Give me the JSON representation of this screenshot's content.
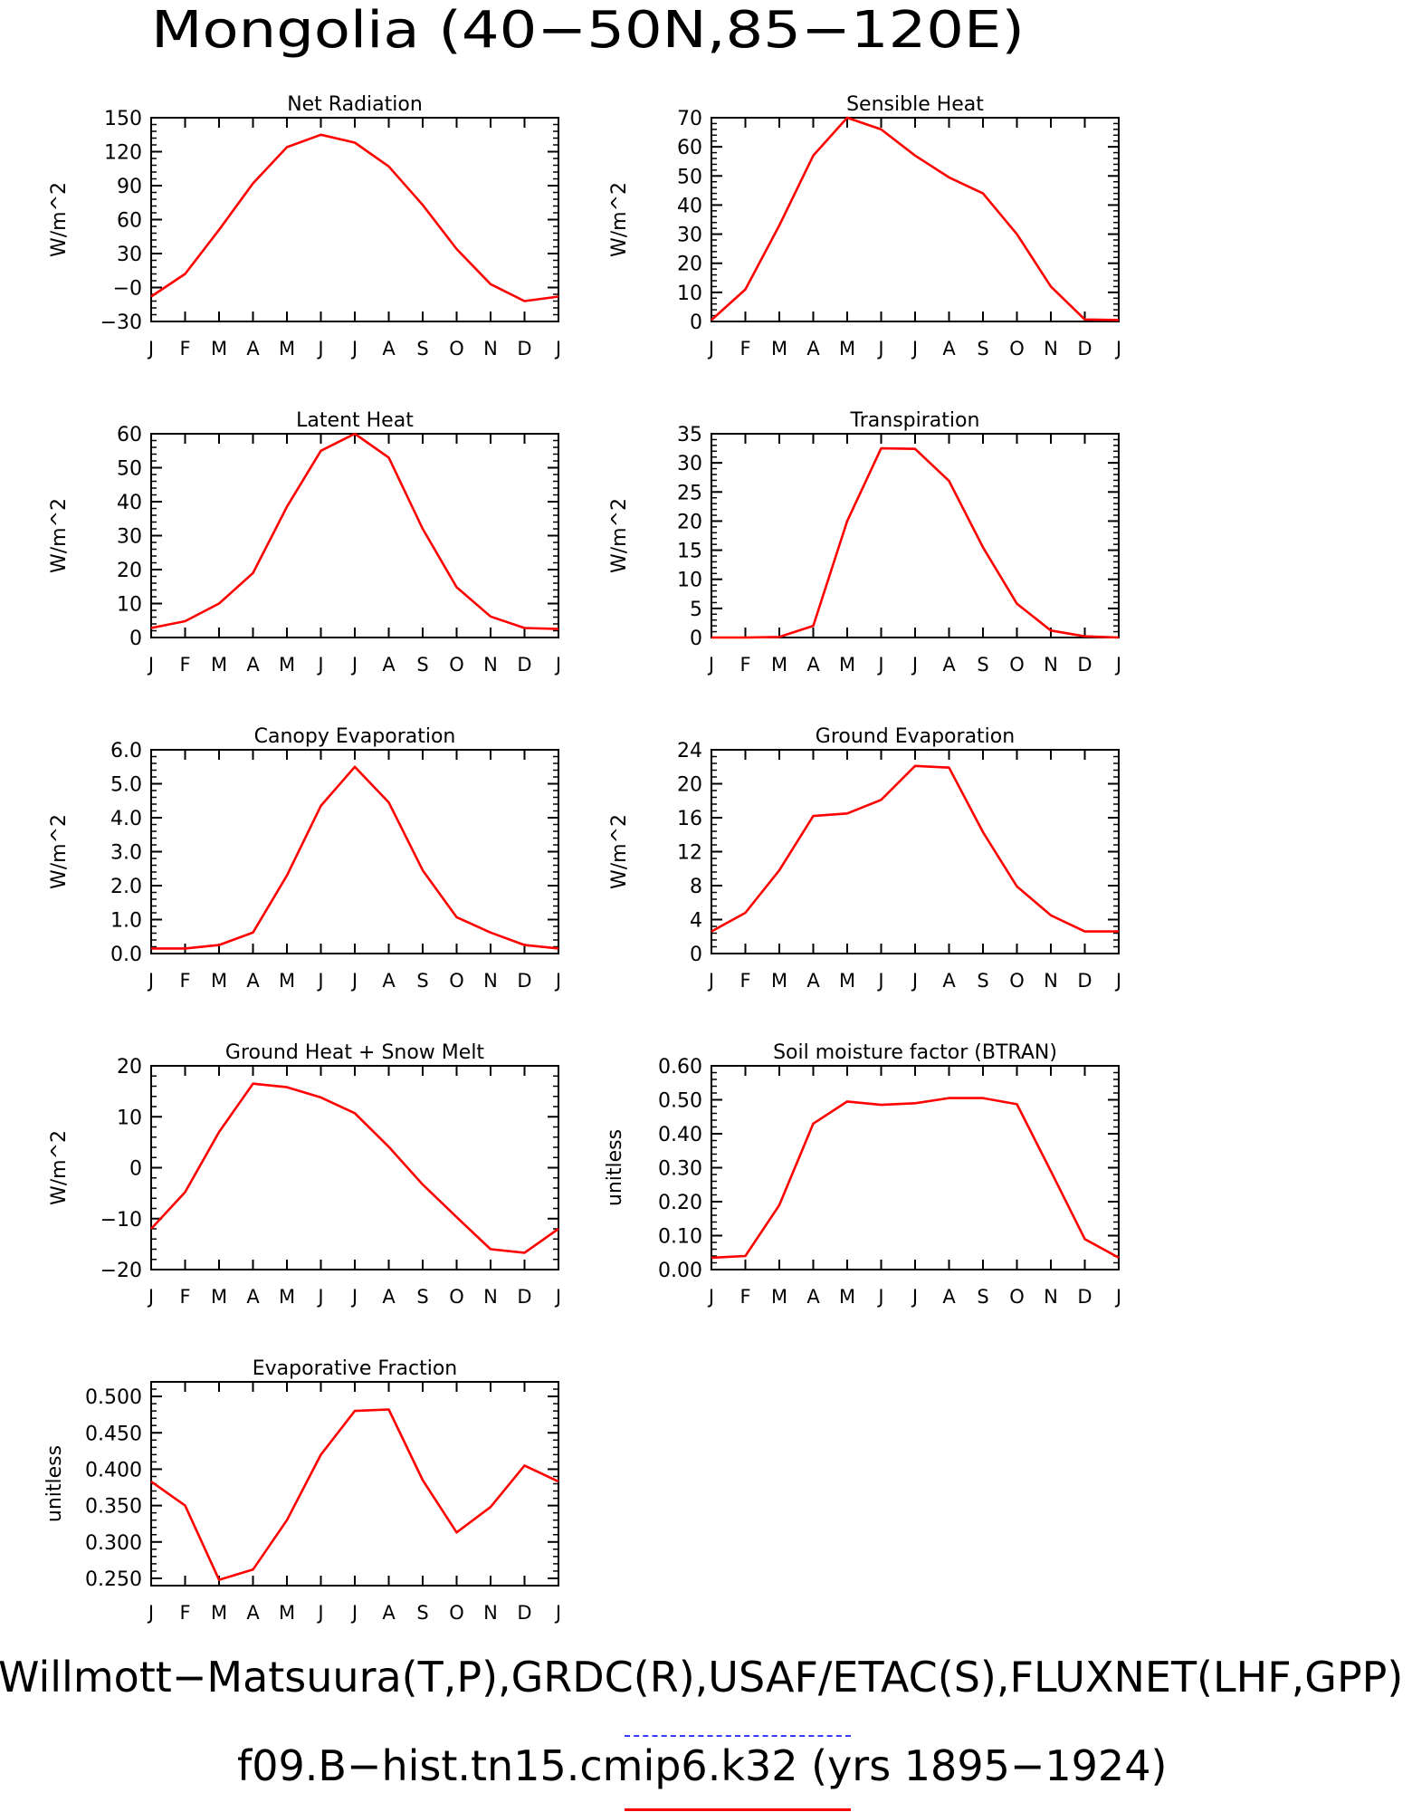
{
  "title": "Mongolia (40−50N,85−120E)",
  "footer": {
    "line1": "Willmott−Matsuura(T,P),GRDC(R),USAF/ETAC(S),FLUXNET(LHF,GPP)",
    "line2": "f09.B−hist.tn15.cmip6.k32 (yrs 1895−1924)",
    "line1_underline_color": "#3a3aff",
    "line2_underline_color": "#ff0000"
  },
  "colors": {
    "series": "#ff0000",
    "axes": "#000000"
  },
  "chart_data": [
    {
      "type": "line",
      "title": "Net Radiation",
      "ylabel": "W/m^2",
      "categories": [
        "J",
        "F",
        "M",
        "A",
        "M",
        "J",
        "J",
        "A",
        "S",
        "O",
        "N",
        "D",
        "J"
      ],
      "ylim": [
        -30,
        150
      ],
      "yticks": [
        -30,
        0,
        30,
        60,
        90,
        120,
        150
      ],
      "ytick_labels": [
        "−30",
        "−0",
        "30",
        "60",
        "90",
        "120",
        "150"
      ],
      "series": [
        {
          "values": [
            -8,
            12,
            51,
            92,
            124,
            135,
            128,
            107,
            73,
            34,
            3,
            -12,
            -8
          ]
        }
      ]
    },
    {
      "type": "line",
      "title": "Sensible Heat",
      "ylabel": "W/m^2",
      "categories": [
        "J",
        "F",
        "M",
        "A",
        "M",
        "J",
        "J",
        "A",
        "S",
        "O",
        "N",
        "D",
        "J"
      ],
      "ylim": [
        0,
        70
      ],
      "yticks": [
        0,
        10,
        20,
        30,
        40,
        50,
        60,
        70
      ],
      "ytick_labels": [
        "0",
        "10",
        "20",
        "30",
        "40",
        "50",
        "60",
        "70"
      ],
      "series": [
        {
          "values": [
            0.5,
            11,
            33,
            57,
            70,
            66,
            57,
            49.5,
            44,
            30,
            12,
            0.7,
            0.5
          ]
        }
      ]
    },
    {
      "type": "line",
      "title": "Latent Heat",
      "ylabel": "W/m^2",
      "categories": [
        "J",
        "F",
        "M",
        "A",
        "M",
        "J",
        "J",
        "A",
        "S",
        "O",
        "N",
        "D",
        "J"
      ],
      "ylim": [
        0,
        60
      ],
      "yticks": [
        0,
        10,
        20,
        30,
        40,
        50,
        60
      ],
      "ytick_labels": [
        "0",
        "10",
        "20",
        "30",
        "40",
        "50",
        "60"
      ],
      "series": [
        {
          "values": [
            2.8,
            4.8,
            10,
            19,
            38.5,
            55,
            60,
            53,
            32,
            14.8,
            6.2,
            2.8,
            2.5
          ]
        }
      ]
    },
    {
      "type": "line",
      "title": "Transpiration",
      "ylabel": "W/m^2",
      "categories": [
        "J",
        "F",
        "M",
        "A",
        "M",
        "J",
        "J",
        "A",
        "S",
        "O",
        "N",
        "D",
        "J"
      ],
      "ylim": [
        0,
        35
      ],
      "yticks": [
        0,
        5,
        10,
        15,
        20,
        25,
        30,
        35
      ],
      "ytick_labels": [
        "0",
        "5",
        "10",
        "15",
        "20",
        "25",
        "30",
        "35"
      ],
      "series": [
        {
          "values": [
            0,
            0,
            0.1,
            2,
            20,
            32.5,
            32.4,
            26.9,
            15.5,
            5.8,
            1.2,
            0.2,
            0
          ]
        }
      ]
    },
    {
      "type": "line",
      "title": "Canopy Evaporation",
      "ylabel": "W/m^2",
      "categories": [
        "J",
        "F",
        "M",
        "A",
        "M",
        "J",
        "J",
        "A",
        "S",
        "O",
        "N",
        "D",
        "J"
      ],
      "ylim": [
        0,
        6
      ],
      "yticks": [
        0,
        1,
        2,
        3,
        4,
        5,
        6
      ],
      "ytick_labels": [
        "0.0",
        "1.0",
        "2.0",
        "3.0",
        "4.0",
        "5.0",
        "6.0"
      ],
      "series": [
        {
          "values": [
            0.15,
            0.15,
            0.25,
            0.62,
            2.3,
            4.35,
            5.5,
            4.45,
            2.45,
            1.07,
            0.62,
            0.25,
            0.15
          ]
        }
      ]
    },
    {
      "type": "line",
      "title": "Ground Evaporation",
      "ylabel": "W/m^2",
      "categories": [
        "J",
        "F",
        "M",
        "A",
        "M",
        "J",
        "J",
        "A",
        "S",
        "O",
        "N",
        "D",
        "J"
      ],
      "ylim": [
        0,
        24
      ],
      "yticks": [
        0,
        4,
        8,
        12,
        16,
        20,
        24
      ],
      "ytick_labels": [
        "0",
        "4",
        "8",
        "12",
        "16",
        "20",
        "24"
      ],
      "series": [
        {
          "values": [
            2.6,
            4.8,
            9.8,
            16.2,
            16.5,
            18.1,
            22.1,
            21.9,
            14.3,
            7.9,
            4.5,
            2.6,
            2.6
          ]
        }
      ]
    },
    {
      "type": "line",
      "title": "Ground Heat + Snow Melt",
      "ylabel": "W/m^2",
      "categories": [
        "J",
        "F",
        "M",
        "A",
        "M",
        "J",
        "J",
        "A",
        "S",
        "O",
        "N",
        "D",
        "J"
      ],
      "ylim": [
        -20,
        20
      ],
      "yticks": [
        -20,
        -10,
        0,
        10,
        20
      ],
      "ytick_labels": [
        "−20",
        "−10",
        "0",
        "10",
        "20"
      ],
      "series": [
        {
          "values": [
            -12,
            -4.8,
            7,
            16.5,
            15.8,
            13.8,
            10.7,
            4.1,
            -3.3,
            -9.7,
            -16,
            -16.7,
            -12
          ]
        }
      ]
    },
    {
      "type": "line",
      "title": "Soil moisture factor (BTRAN)",
      "ylabel": "unitless",
      "categories": [
        "J",
        "F",
        "M",
        "A",
        "M",
        "J",
        "J",
        "A",
        "S",
        "O",
        "N",
        "D",
        "J"
      ],
      "ylim": [
        0,
        0.6
      ],
      "yticks": [
        0,
        0.1,
        0.2,
        0.3,
        0.4,
        0.5,
        0.6
      ],
      "ytick_labels": [
        "0.00",
        "0.10",
        "0.20",
        "0.30",
        "0.40",
        "0.50",
        "0.60"
      ],
      "series": [
        {
          "values": [
            0.035,
            0.04,
            0.19,
            0.43,
            0.495,
            0.485,
            0.49,
            0.505,
            0.505,
            0.487,
            0.29,
            0.09,
            0.035
          ]
        }
      ]
    },
    {
      "type": "line",
      "title": "Evaporative Fraction",
      "ylabel": "unitless",
      "categories": [
        "J",
        "F",
        "M",
        "A",
        "M",
        "J",
        "J",
        "A",
        "S",
        "O",
        "N",
        "D",
        "J"
      ],
      "ylim": [
        0.24,
        0.52
      ],
      "yticks": [
        0.25,
        0.3,
        0.35,
        0.4,
        0.45,
        0.5
      ],
      "ytick_labels": [
        "0.250",
        "0.300",
        "0.350",
        "0.400",
        "0.450",
        "0.500"
      ],
      "series": [
        {
          "values": [
            0.383,
            0.35,
            0.248,
            0.262,
            0.33,
            0.42,
            0.48,
            0.482,
            0.385,
            0.313,
            0.348,
            0.405,
            0.383
          ]
        }
      ]
    }
  ]
}
